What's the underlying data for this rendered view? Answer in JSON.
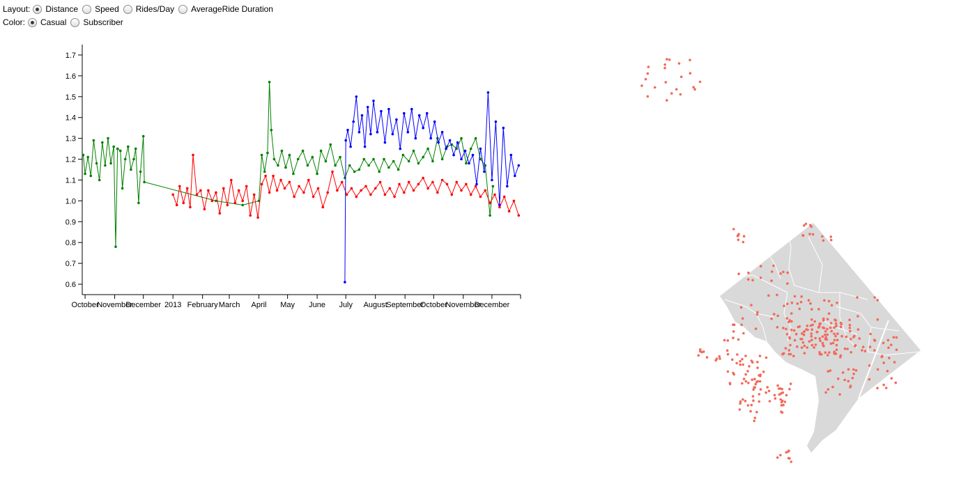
{
  "controls": {
    "layout": {
      "label": "Layout:",
      "options": [
        "Distance",
        "Speed",
        "Rides/Day",
        "AverageRide Duration"
      ],
      "selected": "Distance"
    },
    "color": {
      "label": "Color:",
      "options": [
        "Casual",
        "Subscriber"
      ],
      "selected": "Casual"
    }
  },
  "chart_data": {
    "type": "line",
    "title": "",
    "xlabel": "",
    "ylabel": "",
    "ylim": [
      0.55,
      1.75
    ],
    "yticks": [
      0.6,
      0.7,
      0.8,
      0.9,
      1.0,
      1.1,
      1.2,
      1.3,
      1.4,
      1.5,
      1.6,
      1.7
    ],
    "xlim": [
      "2012-09-28",
      "2013-12-31"
    ],
    "xticks": [
      {
        "date": "2012-10-01",
        "label": "October"
      },
      {
        "date": "2012-11-01",
        "label": "November"
      },
      {
        "date": "2012-12-01",
        "label": "December"
      },
      {
        "date": "2013-01-01",
        "label": "2013"
      },
      {
        "date": "2013-02-01",
        "label": "February"
      },
      {
        "date": "2013-03-01",
        "label": "March"
      },
      {
        "date": "2013-04-01",
        "label": "April"
      },
      {
        "date": "2013-05-01",
        "label": "May"
      },
      {
        "date": "2013-06-01",
        "label": "June"
      },
      {
        "date": "2013-07-01",
        "label": "July"
      },
      {
        "date": "2013-08-01",
        "label": "August"
      },
      {
        "date": "2013-09-01",
        "label": "September"
      },
      {
        "date": "2013-10-01",
        "label": "October"
      },
      {
        "date": "2013-11-01",
        "label": "November"
      },
      {
        "date": "2013-12-01",
        "label": "December"
      }
    ],
    "grid": false,
    "legend": "none",
    "series": [
      {
        "color": "#008000",
        "points": [
          [
            "2012-09-29",
            1.22
          ],
          [
            "2012-10-01",
            1.13
          ],
          [
            "2012-10-04",
            1.21
          ],
          [
            "2012-10-07",
            1.12
          ],
          [
            "2012-10-10",
            1.29
          ],
          [
            "2012-10-13",
            1.18
          ],
          [
            "2012-10-16",
            1.1
          ],
          [
            "2012-10-19",
            1.28
          ],
          [
            "2012-10-22",
            1.17
          ],
          [
            "2012-10-25",
            1.3
          ],
          [
            "2012-10-28",
            1.18
          ],
          [
            "2012-10-31",
            1.26
          ],
          [
            "2012-11-02",
            0.78
          ],
          [
            "2012-11-04",
            1.25
          ],
          [
            "2012-11-07",
            1.24
          ],
          [
            "2012-11-09",
            1.06
          ],
          [
            "2012-11-12",
            1.2
          ],
          [
            "2012-11-15",
            1.26
          ],
          [
            "2012-11-18",
            1.15
          ],
          [
            "2012-11-21",
            1.2
          ],
          [
            "2012-11-23",
            1.25
          ],
          [
            "2012-11-26",
            0.99
          ],
          [
            "2012-11-28",
            1.14
          ],
          [
            "2012-12-01",
            1.31
          ],
          [
            "2012-12-02",
            1.09
          ],
          [
            "2013-02-15",
            1.0
          ],
          [
            "2013-03-15",
            0.98
          ],
          [
            "2013-04-01",
            1.0
          ],
          [
            "2013-04-04",
            1.22
          ],
          [
            "2013-04-07",
            1.14
          ],
          [
            "2013-04-10",
            1.23
          ],
          [
            "2013-04-12",
            1.57
          ],
          [
            "2013-04-14",
            1.34
          ],
          [
            "2013-04-17",
            1.2
          ],
          [
            "2013-04-21",
            1.17
          ],
          [
            "2013-04-25",
            1.24
          ],
          [
            "2013-04-29",
            1.16
          ],
          [
            "2013-05-03",
            1.22
          ],
          [
            "2013-05-07",
            1.13
          ],
          [
            "2013-05-12",
            1.2
          ],
          [
            "2013-05-17",
            1.24
          ],
          [
            "2013-05-22",
            1.17
          ],
          [
            "2013-05-27",
            1.21
          ],
          [
            "2013-06-01",
            1.13
          ],
          [
            "2013-06-05",
            1.24
          ],
          [
            "2013-06-10",
            1.19
          ],
          [
            "2013-06-15",
            1.27
          ],
          [
            "2013-06-20",
            1.17
          ],
          [
            "2013-06-25",
            1.21
          ],
          [
            "2013-06-30",
            1.11
          ],
          [
            "2013-07-05",
            1.17
          ],
          [
            "2013-07-10",
            1.14
          ],
          [
            "2013-07-15",
            1.15
          ],
          [
            "2013-07-20",
            1.2
          ],
          [
            "2013-07-25",
            1.17
          ],
          [
            "2013-07-30",
            1.2
          ],
          [
            "2013-08-05",
            1.14
          ],
          [
            "2013-08-10",
            1.2
          ],
          [
            "2013-08-15",
            1.16
          ],
          [
            "2013-08-20",
            1.19
          ],
          [
            "2013-08-25",
            1.15
          ],
          [
            "2013-08-30",
            1.22
          ],
          [
            "2013-09-05",
            1.19
          ],
          [
            "2013-09-10",
            1.24
          ],
          [
            "2013-09-15",
            1.18
          ],
          [
            "2013-09-20",
            1.21
          ],
          [
            "2013-09-25",
            1.25
          ],
          [
            "2013-09-30",
            1.19
          ],
          [
            "2013-10-05",
            1.3
          ],
          [
            "2013-10-10",
            1.2
          ],
          [
            "2013-10-15",
            1.26
          ],
          [
            "2013-10-20",
            1.27
          ],
          [
            "2013-10-25",
            1.25
          ],
          [
            "2013-10-30",
            1.3
          ],
          [
            "2013-11-04",
            1.18
          ],
          [
            "2013-11-09",
            1.25
          ],
          [
            "2013-11-14",
            1.3
          ],
          [
            "2013-11-19",
            1.2
          ],
          [
            "2013-11-24",
            1.17
          ],
          [
            "2013-11-29",
            0.93
          ],
          [
            "2013-12-02",
            1.07
          ]
        ]
      },
      {
        "color": "#ff0000",
        "points": [
          [
            "2013-01-01",
            1.03
          ],
          [
            "2013-01-05",
            0.98
          ],
          [
            "2013-01-08",
            1.07
          ],
          [
            "2013-01-12",
            0.99
          ],
          [
            "2013-01-16",
            1.06
          ],
          [
            "2013-01-19",
            0.97
          ],
          [
            "2013-01-22",
            1.22
          ],
          [
            "2013-01-26",
            1.03
          ],
          [
            "2013-01-30",
            1.05
          ],
          [
            "2013-02-03",
            0.96
          ],
          [
            "2013-02-07",
            1.05
          ],
          [
            "2013-02-11",
            1.0
          ],
          [
            "2013-02-15",
            1.04
          ],
          [
            "2013-02-19",
            0.94
          ],
          [
            "2013-02-23",
            1.06
          ],
          [
            "2013-02-27",
            0.98
          ],
          [
            "2013-03-03",
            1.1
          ],
          [
            "2013-03-07",
            0.99
          ],
          [
            "2013-03-11",
            1.05
          ],
          [
            "2013-03-15",
            1.0
          ],
          [
            "2013-03-19",
            1.07
          ],
          [
            "2013-03-23",
            0.93
          ],
          [
            "2013-03-27",
            1.03
          ],
          [
            "2013-03-31",
            0.92
          ],
          [
            "2013-04-04",
            1.08
          ],
          [
            "2013-04-08",
            1.12
          ],
          [
            "2013-04-12",
            1.04
          ],
          [
            "2013-04-16",
            1.12
          ],
          [
            "2013-04-20",
            1.05
          ],
          [
            "2013-04-24",
            1.1
          ],
          [
            "2013-04-28",
            1.06
          ],
          [
            "2013-05-03",
            1.09
          ],
          [
            "2013-05-08",
            1.02
          ],
          [
            "2013-05-13",
            1.07
          ],
          [
            "2013-05-18",
            1.04
          ],
          [
            "2013-05-23",
            1.1
          ],
          [
            "2013-05-28",
            1.02
          ],
          [
            "2013-06-02",
            1.06
          ],
          [
            "2013-06-07",
            0.97
          ],
          [
            "2013-06-12",
            1.04
          ],
          [
            "2013-06-17",
            1.14
          ],
          [
            "2013-06-22",
            1.05
          ],
          [
            "2013-06-27",
            1.09
          ],
          [
            "2013-07-02",
            1.03
          ],
          [
            "2013-07-07",
            1.06
          ],
          [
            "2013-07-12",
            1.02
          ],
          [
            "2013-07-17",
            1.05
          ],
          [
            "2013-07-22",
            1.07
          ],
          [
            "2013-07-27",
            1.03
          ],
          [
            "2013-08-01",
            1.06
          ],
          [
            "2013-08-06",
            1.09
          ],
          [
            "2013-08-11",
            1.03
          ],
          [
            "2013-08-16",
            1.06
          ],
          [
            "2013-08-21",
            1.02
          ],
          [
            "2013-08-26",
            1.08
          ],
          [
            "2013-08-31",
            1.04
          ],
          [
            "2013-09-05",
            1.09
          ],
          [
            "2013-09-10",
            1.05
          ],
          [
            "2013-09-15",
            1.08
          ],
          [
            "2013-09-20",
            1.11
          ],
          [
            "2013-09-25",
            1.06
          ],
          [
            "2013-09-30",
            1.09
          ],
          [
            "2013-10-05",
            1.04
          ],
          [
            "2013-10-10",
            1.1
          ],
          [
            "2013-10-15",
            1.08
          ],
          [
            "2013-10-20",
            1.03
          ],
          [
            "2013-10-25",
            1.09
          ],
          [
            "2013-10-30",
            1.05
          ],
          [
            "2013-11-04",
            1.08
          ],
          [
            "2013-11-09",
            1.03
          ],
          [
            "2013-11-14",
            1.07
          ],
          [
            "2013-11-19",
            1.02
          ],
          [
            "2013-11-24",
            1.05
          ],
          [
            "2013-11-29",
            0.99
          ],
          [
            "2013-12-04",
            1.03
          ],
          [
            "2013-12-09",
            0.97
          ],
          [
            "2013-12-14",
            1.02
          ],
          [
            "2013-12-19",
            0.95
          ],
          [
            "2013-12-24",
            1.0
          ],
          [
            "2013-12-29",
            0.93
          ]
        ]
      },
      {
        "color": "#0000ff",
        "points": [
          [
            "2013-06-30",
            0.61
          ],
          [
            "2013-07-01",
            1.29
          ],
          [
            "2013-07-03",
            1.34
          ],
          [
            "2013-07-06",
            1.26
          ],
          [
            "2013-07-09",
            1.38
          ],
          [
            "2013-07-12",
            1.5
          ],
          [
            "2013-07-15",
            1.33
          ],
          [
            "2013-07-18",
            1.41
          ],
          [
            "2013-07-21",
            1.26
          ],
          [
            "2013-07-24",
            1.45
          ],
          [
            "2013-07-27",
            1.32
          ],
          [
            "2013-07-30",
            1.48
          ],
          [
            "2013-08-03",
            1.33
          ],
          [
            "2013-08-07",
            1.43
          ],
          [
            "2013-08-11",
            1.28
          ],
          [
            "2013-08-15",
            1.44
          ],
          [
            "2013-08-19",
            1.32
          ],
          [
            "2013-08-23",
            1.39
          ],
          [
            "2013-08-27",
            1.25
          ],
          [
            "2013-08-31",
            1.42
          ],
          [
            "2013-09-04",
            1.33
          ],
          [
            "2013-09-08",
            1.44
          ],
          [
            "2013-09-12",
            1.3
          ],
          [
            "2013-09-16",
            1.41
          ],
          [
            "2013-09-20",
            1.35
          ],
          [
            "2013-09-24",
            1.42
          ],
          [
            "2013-09-28",
            1.3
          ],
          [
            "2013-10-02",
            1.38
          ],
          [
            "2013-10-06",
            1.28
          ],
          [
            "2013-10-10",
            1.33
          ],
          [
            "2013-10-14",
            1.25
          ],
          [
            "2013-10-18",
            1.29
          ],
          [
            "2013-10-22",
            1.22
          ],
          [
            "2013-10-26",
            1.28
          ],
          [
            "2013-10-30",
            1.2
          ],
          [
            "2013-11-03",
            1.24
          ],
          [
            "2013-11-07",
            1.18
          ],
          [
            "2013-11-11",
            1.22
          ],
          [
            "2013-11-15",
            1.08
          ],
          [
            "2013-11-19",
            1.25
          ],
          [
            "2013-11-23",
            1.14
          ],
          [
            "2013-11-27",
            1.52
          ],
          [
            "2013-12-01",
            1.1
          ],
          [
            "2013-12-05",
            1.38
          ],
          [
            "2013-12-09",
            0.98
          ],
          [
            "2013-12-13",
            1.35
          ],
          [
            "2013-12-17",
            1.07
          ],
          [
            "2013-12-21",
            1.22
          ],
          [
            "2013-12-25",
            1.12
          ],
          [
            "2013-12-29",
            1.17
          ]
        ]
      }
    ]
  },
  "map": {
    "region_color": "#d9d9d9",
    "boundary_color": "#ffffff",
    "point_color": "#f26a5a"
  }
}
